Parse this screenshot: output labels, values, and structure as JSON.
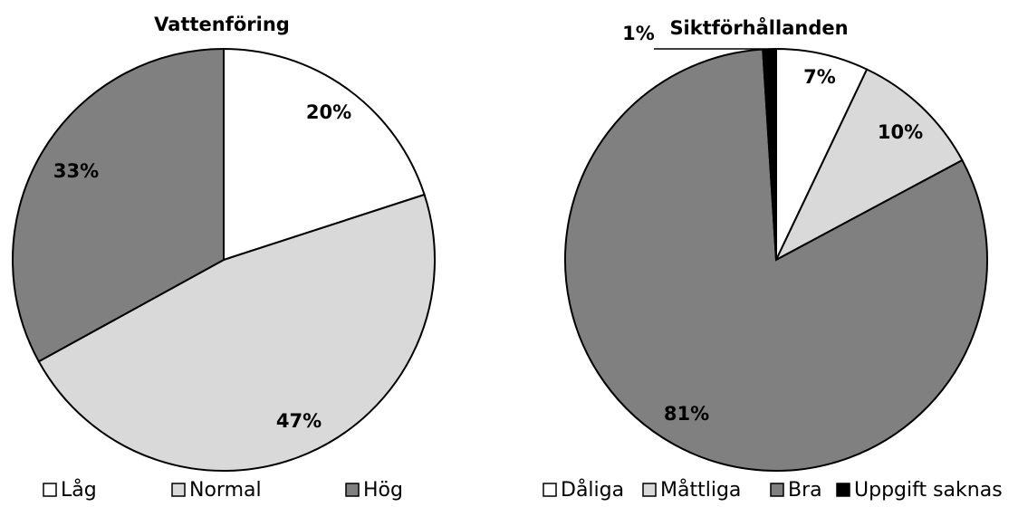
{
  "chart_data": [
    {
      "type": "pie",
      "title": "Vattenföring",
      "categories": [
        "Låg",
        "Normal",
        "Hög"
      ],
      "values": [
        20,
        47,
        33
      ],
      "labels": [
        "20%",
        "47%",
        "33%"
      ],
      "colors": [
        "#ffffff",
        "#d9d9d9",
        "#808080"
      ],
      "legend_position": "bottom"
    },
    {
      "type": "pie",
      "title": "Siktförhållanden",
      "categories": [
        "Dåliga",
        "Måttliga",
        "Bra",
        "Uppgift saknas"
      ],
      "values": [
        7,
        10,
        81,
        1
      ],
      "labels": [
        "7%",
        "10%",
        "81%",
        "1%"
      ],
      "colors": [
        "#ffffff",
        "#d9d9d9",
        "#808080",
        "#000000"
      ],
      "legend_position": "bottom"
    }
  ]
}
